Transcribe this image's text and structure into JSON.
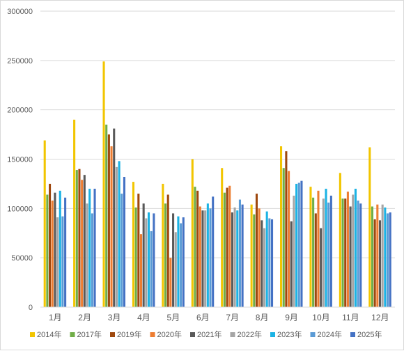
{
  "chart_data": {
    "type": "bar",
    "title": "",
    "xlabel": "",
    "ylabel": "",
    "ylim": [
      0,
      300000
    ],
    "yticks": [
      0,
      50000,
      100000,
      150000,
      200000,
      250000,
      300000
    ],
    "grid": true,
    "legend_position": "bottom",
    "categories": [
      "1月",
      "2月",
      "3月",
      "4月",
      "5月",
      "6月",
      "7月",
      "8月",
      "9月",
      "10月",
      "11月",
      "12月"
    ],
    "series": [
      {
        "name": "2014年",
        "color": "#F2C500",
        "values": [
          169000,
          190000,
          249000,
          127000,
          125000,
          150000,
          141000,
          104000,
          163000,
          122000,
          136000,
          162000
        ]
      },
      {
        "name": "2017年",
        "color": "#70AD47",
        "values": [
          114000,
          139000,
          185000,
          101000,
          105000,
          122000,
          116000,
          94000,
          141000,
          111000,
          110000,
          102000
        ]
      },
      {
        "name": "2019年",
        "color": "#9E480E",
        "values": [
          125000,
          140000,
          175000,
          115000,
          114000,
          118000,
          121000,
          115000,
          158000,
          95000,
          110000,
          89000
        ]
      },
      {
        "name": "2020年",
        "color": "#ED7D31",
        "values": [
          108000,
          129000,
          163000,
          74000,
          50000,
          102000,
          123000,
          100000,
          138000,
          118000,
          117000,
          104000
        ]
      },
      {
        "name": "2021年",
        "color": "#595959",
        "values": [
          116000,
          134000,
          181000,
          105000,
          95000,
          98000,
          96000,
          88000,
          87000,
          80000,
          102000,
          88000
        ]
      },
      {
        "name": "2022年",
        "color": "#A5A5A5",
        "values": [
          91000,
          105000,
          142000,
          90000,
          76000,
          98000,
          101000,
          80000,
          113000,
          110000,
          114000,
          104000
        ]
      },
      {
        "name": "2023年",
        "color": "#1CB3E4",
        "values": [
          118000,
          120000,
          148000,
          96000,
          92000,
          105000,
          98000,
          97000,
          125000,
          120000,
          120000,
          101000
        ]
      },
      {
        "name": "2024年",
        "color": "#5B9BD5",
        "values": [
          92000,
          95000,
          115000,
          77000,
          85000,
          100000,
          109000,
          90000,
          126000,
          106000,
          108000,
          95000
        ]
      },
      {
        "name": "2025年",
        "color": "#4472C4",
        "values": [
          111000,
          120000,
          132000,
          95000,
          91000,
          112000,
          104000,
          89000,
          128000,
          113000,
          105000,
          96000
        ]
      }
    ]
  }
}
